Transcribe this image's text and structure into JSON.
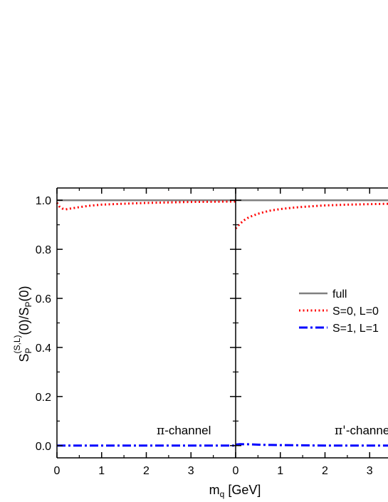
{
  "chart_data": {
    "type": "line",
    "ylabel": {
      "main": "S",
      "sub1": "P",
      "sup1": "(S,L)",
      "mid": "(0)/S",
      "sub2": "P",
      "tail": "(0)"
    },
    "xlabel": {
      "main": "m",
      "sub": "q",
      "tail": " [GeV]"
    },
    "ylim": [
      -0.05,
      1.05
    ],
    "yticks": [
      0.0,
      0.2,
      0.4,
      0.6,
      0.8,
      1.0
    ],
    "ytick_labels": [
      "0.0",
      "0.2",
      "0.4",
      "0.6",
      "0.8",
      "1.0"
    ],
    "legend": {
      "placement": "right",
      "entries": [
        {
          "label": "full",
          "color": "#808080",
          "style": "solid"
        },
        {
          "label": "S=0, L=0",
          "color": "#ff0000",
          "style": "dotted"
        },
        {
          "label": "S=1, L=1",
          "color": "#0000ff",
          "style": "dashdot"
        }
      ]
    },
    "panels": [
      {
        "annotation": {
          "symbol": "π",
          "text": "-channel"
        },
        "xlim": [
          0,
          4
        ],
        "xticks": [
          0,
          1,
          2,
          3
        ],
        "xtick_labels": [
          "0",
          "1",
          "2",
          "3"
        ],
        "series": [
          {
            "color": "#808080",
            "style": "solid",
            "x": [
              0,
              0.5,
              1,
              1.5,
              2,
              2.5,
              3,
              3.5,
              4
            ],
            "y": [
              1.0,
              1.0,
              1.0,
              1.0,
              1.0,
              1.0,
              1.0,
              1.0,
              1.0
            ]
          },
          {
            "color": "#ff0000",
            "style": "dotted",
            "x": [
              0.0,
              0.05,
              0.12,
              0.2,
              0.3,
              0.5,
              0.75,
              1.0,
              1.5,
              2.0,
              2.5,
              3.0,
              3.5,
              4.0
            ],
            "y": [
              0.99,
              0.975,
              0.966,
              0.963,
              0.966,
              0.972,
              0.978,
              0.982,
              0.986,
              0.989,
              0.991,
              0.993,
              0.994,
              0.995
            ]
          },
          {
            "color": "#0000ff",
            "style": "dashdot",
            "x": [
              0,
              1,
              2,
              3,
              4
            ],
            "y": [
              0.0,
              0.0,
              0.0,
              0.0,
              0.0
            ]
          }
        ]
      },
      {
        "annotation": {
          "symbol": "π'",
          "text": "-channel"
        },
        "xlim": [
          0,
          4
        ],
        "xticks": [
          0,
          1,
          2,
          3
        ],
        "xtick_labels": [
          "0",
          "1",
          "2",
          "3"
        ],
        "series": [
          {
            "color": "#808080",
            "style": "solid",
            "x": [
              0,
              0.5,
              1,
              1.5,
              2,
              2.5,
              3,
              3.5,
              4
            ],
            "y": [
              1.0,
              1.0,
              1.0,
              1.0,
              1.0,
              1.0,
              1.0,
              1.0,
              1.0
            ]
          },
          {
            "color": "#ff0000",
            "style": "dotted",
            "x": [
              0.0,
              0.05,
              0.1,
              0.2,
              0.3,
              0.5,
              0.75,
              1.0,
              1.25,
              1.5,
              2.0,
              2.5,
              3.0,
              3.5,
              4.0
            ],
            "y": [
              0.885,
              0.895,
              0.905,
              0.92,
              0.931,
              0.945,
              0.957,
              0.964,
              0.969,
              0.973,
              0.979,
              0.982,
              0.984,
              0.986,
              0.988
            ]
          },
          {
            "color": "#0000ff",
            "style": "dashdot",
            "x": [
              0.0,
              0.1,
              0.3,
              0.6,
              1.0,
              1.5,
              2,
              3,
              4
            ],
            "y": [
              0.004,
              0.006,
              0.005,
              0.003,
              0.002,
              0.001,
              0.0,
              0.0,
              0.0
            ]
          }
        ]
      }
    ]
  }
}
